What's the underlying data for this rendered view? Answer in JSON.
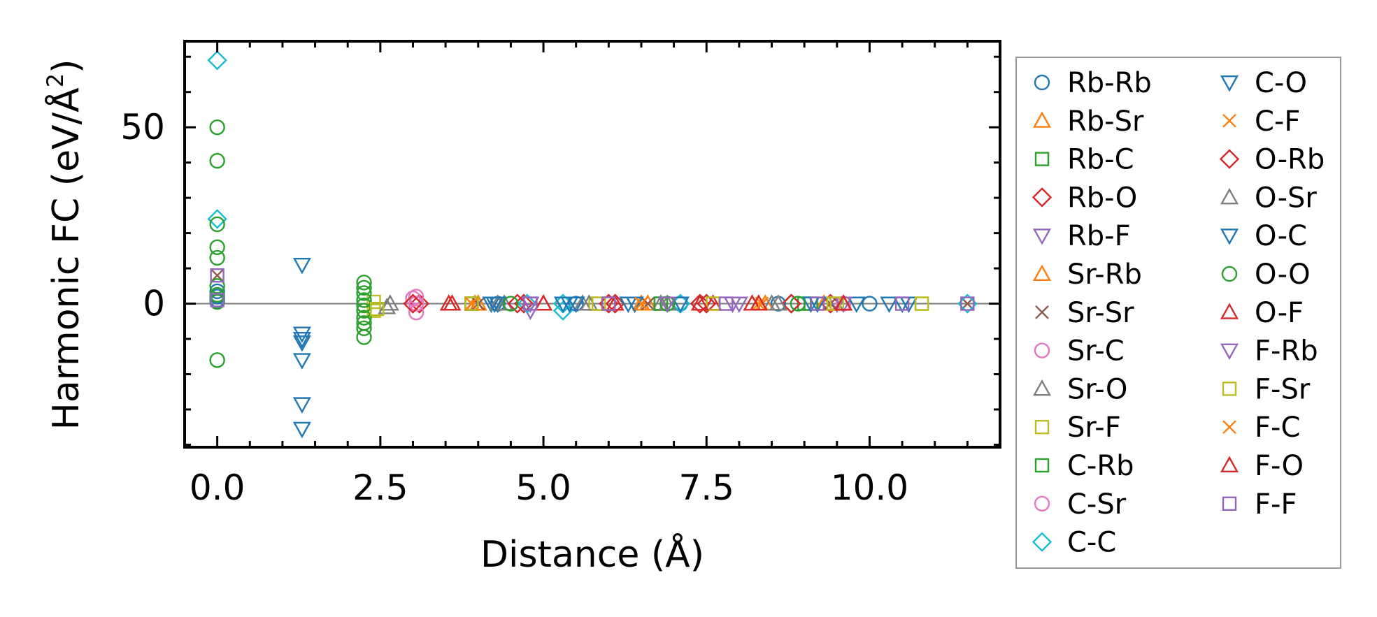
{
  "chart_data": {
    "type": "scatter",
    "xlabel": "Distance (Å)",
    "ylabel": "Harmonic FC (eV/Å²)",
    "ylabel_main": "Harmonic FC (eV/Å",
    "ylabel_sup": "2",
    "ylabel_tail": ")",
    "xlim": [
      -0.5,
      12.0
    ],
    "ylim": [
      -40.7,
      74.4
    ],
    "xticks": [
      0.0,
      2.5,
      5.0,
      7.5,
      10.0
    ],
    "xtick_labels": [
      "0.0",
      "2.5",
      "5.0",
      "7.5",
      "10.0"
    ],
    "yticks": [
      0,
      50
    ],
    "ytick_labels": [
      "0",
      "50"
    ],
    "zero_line": true,
    "grid": false,
    "legend_location": "outside-right",
    "series": [
      {
        "name": "Rb-Rb",
        "marker": "circle",
        "color": "#1f77b4",
        "x": [
          0.0,
          0.0,
          0.0,
          4.3,
          5.5,
          7.1,
          8.6,
          10.0
        ],
        "y": [
          3.5,
          2.0,
          1.0,
          0.0,
          0.0,
          0.0,
          0.0,
          0.0
        ]
      },
      {
        "name": "Rb-Sr",
        "marker": "triangle-up",
        "color": "#ff7f0e",
        "x": [
          4.0,
          6.5,
          8.3,
          9.3
        ],
        "y": [
          0.0,
          0.0,
          0.0,
          0.0
        ]
      },
      {
        "name": "Rb-C",
        "marker": "square",
        "color": "#2ca02c",
        "x": [
          3.9,
          6.8,
          9.0
        ],
        "y": [
          0.0,
          0.0,
          0.0
        ]
      },
      {
        "name": "Rb-O",
        "marker": "diamond",
        "color": "#d62728",
        "x": [
          3.1,
          4.7,
          6.1,
          7.4,
          8.8,
          9.4
        ],
        "y": [
          0.0,
          0.0,
          0.0,
          0.0,
          0.0,
          0.0
        ]
      },
      {
        "name": "Rb-F",
        "marker": "triangle-down",
        "color": "#9467bd",
        "x": [
          4.8,
          6.9,
          7.9,
          9.5
        ],
        "y": [
          -2.0,
          0.0,
          0.0,
          0.0
        ]
      },
      {
        "name": "Sr-Rb",
        "marker": "triangle-up",
        "color": "#ff7f0e",
        "x": [
          3.95,
          6.6,
          8.4
        ],
        "y": [
          0.0,
          0.0,
          0.0
        ]
      },
      {
        "name": "Sr-Sr",
        "marker": "x",
        "color": "#8c564b",
        "x": [
          0.0,
          4.0,
          6.6,
          9.4,
          11.5
        ],
        "y": [
          8.0,
          0.0,
          0.0,
          0.0,
          0.0
        ]
      },
      {
        "name": "Sr-C",
        "marker": "circle",
        "color": "#e377c2",
        "x": [
          3.05,
          3.05,
          3.05,
          6.0,
          9.6
        ],
        "y": [
          2.0,
          0.0,
          -2.5,
          0.0,
          0.0
        ]
      },
      {
        "name": "Sr-O",
        "marker": "triangle-up",
        "color": "#7f7f7f",
        "x": [
          2.65,
          4.4,
          5.6,
          6.8,
          8.5
        ],
        "y": [
          0.0,
          0.0,
          0.0,
          0.0,
          0.0
        ]
      },
      {
        "name": "Sr-F",
        "marker": "square",
        "color": "#bcbd22",
        "x": [
          2.4,
          2.4,
          3.9,
          5.8,
          7.6,
          9.5,
          10.8
        ],
        "y": [
          0.5,
          -2.0,
          0.0,
          0.0,
          0.0,
          0.0,
          0.0
        ]
      },
      {
        "name": "C-Rb",
        "marker": "square",
        "color": "#2ca02c",
        "x": [
          3.9,
          6.8,
          9.1
        ],
        "y": [
          0.0,
          0.0,
          0.0
        ]
      },
      {
        "name": "C-Sr",
        "marker": "circle",
        "color": "#e377c2",
        "x": [
          3.0,
          6.0
        ],
        "y": [
          1.5,
          0.0
        ]
      },
      {
        "name": "C-C",
        "marker": "diamond",
        "color": "#17becf",
        "x": [
          0.0,
          0.0,
          4.75,
          5.3,
          5.3,
          7.1,
          11.5
        ],
        "y": [
          69.0,
          24.0,
          0.0,
          0.0,
          -2.0,
          0.0,
          0.0
        ]
      },
      {
        "name": "C-O",
        "marker": "triangle-down",
        "color": "#1f77b4",
        "x": [
          1.3,
          1.3,
          1.3,
          1.3,
          1.3,
          1.3,
          1.3,
          4.2,
          4.3,
          5.3,
          5.5,
          6.3,
          6.4,
          7.1,
          9.2,
          9.8,
          10.3,
          10.6
        ],
        "y": [
          11.0,
          -8.5,
          -10.0,
          -11.0,
          -16.0,
          -28.5,
          -35.5,
          0.0,
          0.0,
          0.0,
          0.0,
          0.0,
          0.0,
          0.0,
          0.0,
          0.0,
          0.0,
          0.0
        ]
      },
      {
        "name": "C-F",
        "marker": "x",
        "color": "#ff7f0e",
        "x": [
          3.9,
          6.5,
          8.3
        ],
        "y": [
          0.0,
          0.0,
          0.0
        ]
      },
      {
        "name": "O-Rb",
        "marker": "diamond",
        "color": "#d62728",
        "x": [
          3.0,
          4.6,
          6.0,
          7.5,
          8.8
        ],
        "y": [
          0.0,
          0.0,
          0.0,
          0.0,
          0.0
        ]
      },
      {
        "name": "O-Sr",
        "marker": "triangle-up",
        "color": "#7f7f7f",
        "x": [
          2.6,
          4.3,
          5.7,
          6.9,
          8.6
        ],
        "y": [
          -1.0,
          0.0,
          0.0,
          0.0,
          0.0
        ]
      },
      {
        "name": "O-C",
        "marker": "triangle-down",
        "color": "#1f77b4",
        "x": [
          4.25,
          5.4,
          6.4,
          9.1,
          10.5
        ],
        "y": [
          0.0,
          0.0,
          0.0,
          0.0,
          0.0
        ]
      },
      {
        "name": "O-O",
        "marker": "circle",
        "color": "#2ca02c",
        "x": [
          0.0,
          0.0,
          0.0,
          0.0,
          0.0,
          0.0,
          0.0,
          -0.0,
          0.0,
          2.25,
          2.25,
          2.25,
          2.25,
          2.25,
          2.25,
          2.25,
          2.25,
          2.25,
          2.25,
          4.5,
          6.9,
          8.9
        ],
        "y": [
          50.0,
          40.5,
          22.5,
          16.0,
          13.0,
          5.0,
          2.5,
          0.5,
          -16.0,
          6.0,
          4.5,
          3.0,
          1.0,
          -0.5,
          -2.0,
          -4.0,
          -5.5,
          -7.0,
          -9.5,
          0.0,
          0.0,
          0.0
        ]
      },
      {
        "name": "O-F",
        "marker": "triangle-up",
        "color": "#d62728",
        "x": [
          3.55,
          5.0,
          6.1,
          7.6,
          8.2,
          9.6
        ],
        "y": [
          0.0,
          0.0,
          0.0,
          0.0,
          0.0,
          0.0
        ]
      },
      {
        "name": "F-Rb",
        "marker": "triangle-down",
        "color": "#9467bd",
        "x": [
          4.8,
          6.9,
          8.0,
          9.6
        ],
        "y": [
          0.0,
          0.0,
          0.0,
          0.0
        ]
      },
      {
        "name": "F-Sr",
        "marker": "square",
        "color": "#bcbd22",
        "x": [
          2.45,
          3.9,
          5.85,
          7.6,
          9.45,
          10.8
        ],
        "y": [
          -1.5,
          0.0,
          0.0,
          0.0,
          0.0,
          0.0
        ]
      },
      {
        "name": "F-C",
        "marker": "x",
        "color": "#ff7f0e",
        "x": [
          3.9,
          6.5,
          8.35
        ],
        "y": [
          0.0,
          0.0,
          0.0
        ]
      },
      {
        "name": "F-O",
        "marker": "triangle-up",
        "color": "#d62728",
        "x": [
          3.6,
          5.0,
          7.4,
          8.3,
          9.6
        ],
        "y": [
          0.0,
          0.0,
          0.0,
          0.0,
          0.0
        ]
      },
      {
        "name": "F-F",
        "marker": "square",
        "color": "#9467bd",
        "x": [
          0.0,
          0.0,
          4.8,
          6.0,
          7.8,
          9.2,
          10.5,
          11.5
        ],
        "y": [
          8.0,
          1.0,
          0.0,
          0.0,
          0.0,
          0.0,
          0.0,
          0.0
        ]
      }
    ]
  }
}
